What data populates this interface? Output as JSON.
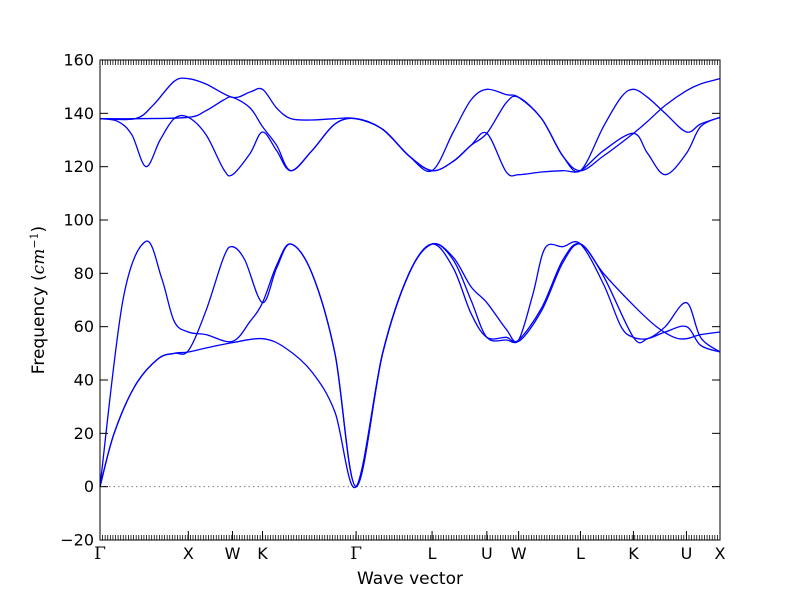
{
  "chart_data": {
    "type": "line",
    "title": "",
    "xlabel": "Wave vector",
    "ylabel": "Frequency",
    "ylabel_unit": "cm",
    "ylabel_unit_power": "−1",
    "ylim": [
      -20,
      160
    ],
    "yticks": [
      -20,
      0,
      20,
      40,
      60,
      80,
      100,
      120,
      140,
      160
    ],
    "xlim": [
      0,
      3.51
    ],
    "grid": false,
    "legend": "none",
    "zero_line": {
      "y": 0,
      "style": "dotted",
      "color": "#808080"
    },
    "line_color": "#0000ff",
    "high_symmetry_points": [
      {
        "label": "Γ",
        "x": 0.0
      },
      {
        "label": "X",
        "x": 0.5
      },
      {
        "label": "W",
        "x": 0.75
      },
      {
        "label": "K",
        "x": 0.92
      },
      {
        "label": "Γ",
        "x": 1.45
      },
      {
        "label": "L",
        "x": 1.88
      },
      {
        "label": "U",
        "x": 2.19
      },
      {
        "label": "W",
        "x": 2.37
      },
      {
        "label": "L",
        "x": 2.72
      },
      {
        "label": "K",
        "x": 3.02
      },
      {
        "label": "U",
        "x": 3.32
      },
      {
        "label": "X",
        "x": 3.51
      }
    ],
    "series": [
      {
        "values": [
          [
            0,
            0
          ],
          [
            0.08,
            20
          ],
          [
            0.2,
            38
          ],
          [
            0.33,
            48
          ],
          [
            0.42,
            50
          ],
          [
            0.5,
            50.5
          ],
          [
            0.6,
            52
          ],
          [
            0.75,
            54
          ],
          [
            0.92,
            55.5
          ],
          [
            1.05,
            52
          ],
          [
            1.2,
            43
          ],
          [
            1.33,
            28
          ],
          [
            1.45,
            0
          ],
          [
            1.6,
            50
          ],
          [
            1.75,
            80
          ],
          [
            1.88,
            91
          ],
          [
            2.0,
            86
          ],
          [
            2.1,
            75
          ],
          [
            2.19,
            69
          ],
          [
            2.3,
            59
          ],
          [
            2.37,
            54.5
          ],
          [
            2.5,
            66
          ],
          [
            2.62,
            84
          ],
          [
            2.72,
            91
          ],
          [
            2.85,
            80
          ],
          [
            3.02,
            68
          ],
          [
            3.15,
            60
          ],
          [
            3.25,
            56
          ],
          [
            3.32,
            55.5
          ],
          [
            3.4,
            57
          ],
          [
            3.51,
            58
          ]
        ]
      },
      {
        "values": [
          [
            0,
            0
          ],
          [
            0.08,
            20
          ],
          [
            0.2,
            38
          ],
          [
            0.33,
            48
          ],
          [
            0.42,
            50
          ],
          [
            0.5,
            51
          ],
          [
            0.6,
            66
          ],
          [
            0.7,
            86
          ],
          [
            0.75,
            90
          ],
          [
            0.82,
            85
          ],
          [
            0.92,
            69
          ],
          [
            1.0,
            82
          ],
          [
            1.08,
            91
          ],
          [
            1.2,
            80
          ],
          [
            1.33,
            50
          ],
          [
            1.45,
            0
          ],
          [
            1.6,
            50
          ],
          [
            1.75,
            80
          ],
          [
            1.88,
            91
          ],
          [
            2.0,
            85
          ],
          [
            2.1,
            70
          ],
          [
            2.19,
            56
          ],
          [
            2.3,
            55
          ],
          [
            2.37,
            55
          ],
          [
            2.5,
            67
          ],
          [
            2.62,
            85
          ],
          [
            2.72,
            91
          ],
          [
            2.85,
            79
          ],
          [
            3.02,
            56
          ],
          [
            3.1,
            55.5
          ],
          [
            3.2,
            60
          ],
          [
            3.32,
            69
          ],
          [
            3.4,
            56
          ],
          [
            3.51,
            50.5
          ]
        ]
      },
      {
        "values": [
          [
            0,
            0
          ],
          [
            0.13,
            70
          ],
          [
            0.26,
            92
          ],
          [
            0.35,
            78
          ],
          [
            0.42,
            62
          ],
          [
            0.5,
            58
          ],
          [
            0.6,
            57
          ],
          [
            0.75,
            54.5
          ],
          [
            0.85,
            62
          ],
          [
            0.92,
            69
          ],
          [
            1.0,
            83
          ],
          [
            1.08,
            91
          ],
          [
            1.2,
            80
          ],
          [
            1.33,
            50
          ],
          [
            1.45,
            0
          ],
          [
            1.6,
            50
          ],
          [
            1.75,
            80
          ],
          [
            1.88,
            91
          ],
          [
            2.0,
            82
          ],
          [
            2.1,
            65
          ],
          [
            2.19,
            56
          ],
          [
            2.3,
            56
          ],
          [
            2.37,
            55
          ],
          [
            2.45,
            72
          ],
          [
            2.52,
            89.5
          ],
          [
            2.62,
            90
          ],
          [
            2.72,
            91
          ],
          [
            2.85,
            76
          ],
          [
            2.95,
            60
          ],
          [
            3.02,
            56
          ],
          [
            3.1,
            55.5
          ],
          [
            3.2,
            58
          ],
          [
            3.32,
            60
          ],
          [
            3.4,
            53
          ],
          [
            3.51,
            50.5
          ]
        ]
      },
      {
        "values": [
          [
            0,
            138
          ],
          [
            0.1,
            137
          ],
          [
            0.18,
            132
          ],
          [
            0.26,
            120
          ],
          [
            0.34,
            130
          ],
          [
            0.42,
            138
          ],
          [
            0.5,
            138.5
          ],
          [
            0.6,
            132
          ],
          [
            0.7,
            119
          ],
          [
            0.75,
            117
          ],
          [
            0.85,
            125
          ],
          [
            0.92,
            133
          ],
          [
            1.0,
            126
          ],
          [
            1.08,
            118.5
          ],
          [
            1.2,
            126
          ],
          [
            1.33,
            136
          ],
          [
            1.45,
            138
          ],
          [
            1.6,
            134
          ],
          [
            1.75,
            124
          ],
          [
            1.88,
            118.5
          ],
          [
            2.0,
            122
          ],
          [
            2.1,
            128
          ],
          [
            2.19,
            132.5
          ],
          [
            2.3,
            118
          ],
          [
            2.37,
            117
          ],
          [
            2.5,
            118
          ],
          [
            2.62,
            118.5
          ],
          [
            2.72,
            118.5
          ],
          [
            2.85,
            126
          ],
          [
            3.02,
            132.5
          ],
          [
            3.1,
            125
          ],
          [
            3.2,
            117
          ],
          [
            3.32,
            125
          ],
          [
            3.4,
            135
          ],
          [
            3.51,
            138.5
          ]
        ]
      },
      {
        "values": [
          [
            0,
            138
          ],
          [
            0.2,
            138
          ],
          [
            0.5,
            138.5
          ],
          [
            0.6,
            141
          ],
          [
            0.7,
            145
          ],
          [
            0.75,
            146
          ],
          [
            0.85,
            142
          ],
          [
            0.92,
            135
          ],
          [
            1.0,
            128
          ],
          [
            1.08,
            118.5
          ],
          [
            1.2,
            126
          ],
          [
            1.33,
            136
          ],
          [
            1.45,
            138
          ],
          [
            1.6,
            134
          ],
          [
            1.75,
            124
          ],
          [
            1.88,
            118.5
          ],
          [
            2.0,
            122
          ],
          [
            2.1,
            128
          ],
          [
            2.19,
            132.5
          ],
          [
            2.3,
            144
          ],
          [
            2.37,
            146
          ],
          [
            2.5,
            138
          ],
          [
            2.62,
            124
          ],
          [
            2.72,
            118.5
          ],
          [
            2.85,
            124
          ],
          [
            3.02,
            132.5
          ],
          [
            3.1,
            137
          ],
          [
            3.2,
            143
          ],
          [
            3.32,
            148.5
          ],
          [
            3.4,
            151
          ],
          [
            3.51,
            153
          ]
        ]
      },
      {
        "values": [
          [
            0,
            138
          ],
          [
            0.2,
            138
          ],
          [
            0.3,
            143
          ],
          [
            0.42,
            152
          ],
          [
            0.5,
            153
          ],
          [
            0.6,
            151
          ],
          [
            0.75,
            146
          ],
          [
            0.85,
            148
          ],
          [
            0.92,
            149
          ],
          [
            1.0,
            142
          ],
          [
            1.08,
            138
          ],
          [
            1.2,
            137.5
          ],
          [
            1.33,
            138
          ],
          [
            1.45,
            138
          ],
          [
            1.6,
            134
          ],
          [
            1.75,
            124
          ],
          [
            1.88,
            118.5
          ],
          [
            2.0,
            133
          ],
          [
            2.1,
            145
          ],
          [
            2.19,
            149
          ],
          [
            2.3,
            147
          ],
          [
            2.37,
            146
          ],
          [
            2.5,
            138
          ],
          [
            2.62,
            124
          ],
          [
            2.72,
            118.5
          ],
          [
            2.85,
            135
          ],
          [
            2.95,
            146
          ],
          [
            3.02,
            149
          ],
          [
            3.1,
            146
          ],
          [
            3.2,
            140
          ],
          [
            3.32,
            133
          ],
          [
            3.4,
            136
          ],
          [
            3.51,
            138.5
          ]
        ]
      }
    ]
  }
}
